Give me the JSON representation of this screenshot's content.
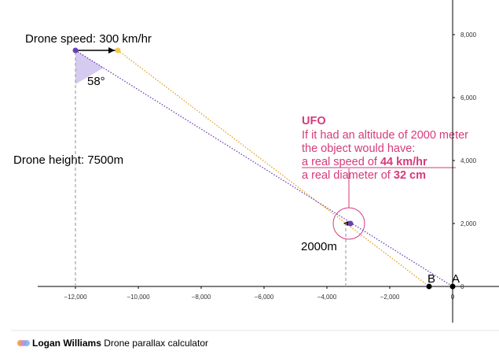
{
  "chart_data": {
    "type": "scatter",
    "xlim": [
      -13200,
      1475
    ],
    "ylim": [
      -1150,
      9100
    ],
    "xticks": [
      {
        "value": -12000,
        "label": "−12,000"
      },
      {
        "value": -10000,
        "label": "−10,000"
      },
      {
        "value": -8000,
        "label": "−8,000"
      },
      {
        "value": -6000,
        "label": "−6,000"
      },
      {
        "value": -4000,
        "label": "−4,000"
      },
      {
        "value": -2000,
        "label": "−2,000"
      },
      0
    ],
    "yticks": [
      0,
      {
        "value": 2000,
        "label": "2,000"
      },
      {
        "value": 4000,
        "label": "4,000"
      },
      {
        "value": 6000,
        "label": "6,000"
      },
      {
        "value": 8000,
        "label": "8,000"
      }
    ],
    "lines": [
      {
        "color": "#6a3fb5",
        "style": "dotted",
        "x": [
          -12000,
          0
        ],
        "y": [
          7500,
          0
        ]
      },
      {
        "color": "#e0a020",
        "style": "dotted",
        "x": [
          -10650,
          -750
        ],
        "y": [
          7500,
          0
        ]
      },
      {
        "color": "#aaaaaa",
        "style": "dashed",
        "x": [
          -12000,
          -12000
        ],
        "y": [
          0,
          7500
        ]
      },
      {
        "color": "#aaaaaa",
        "style": "dashed",
        "x": [
          -3400,
          -3400
        ],
        "y": [
          0,
          2000
        ]
      },
      {
        "color": "#000000",
        "style": "arrow",
        "x": [
          -12000,
          -10650
        ],
        "y": [
          7500,
          7500
        ]
      }
    ],
    "points": [
      {
        "color": "#6a3fb5",
        "x": -12000,
        "y": 7500
      },
      {
        "color": "#f2c94c",
        "x": -10650,
        "y": 7500
      },
      {
        "color": "#6a3fb5",
        "x": -3250,
        "y": 2000
      },
      {
        "color": "#000000",
        "x": 0,
        "y": 0
      },
      {
        "color": "#000000",
        "x": -750,
        "y": 0
      }
    ],
    "annotations": {
      "speed": "Drone speed: 300 km/hr",
      "angle": "58°",
      "height": "Drone height: 7500m",
      "altitude": "2000m",
      "point_a": "A",
      "point_b": "B",
      "ufo_title": "UFO",
      "ufo_line1": "If it had an altitude of 2000 meter",
      "ufo_line2": "the object would have:",
      "ufo_speed_text": "a real speed of ",
      "ufo_speed_value": "44 km/hr",
      "ufo_diameter_text": "a real diameter of ",
      "ufo_diameter_value": "32 cm"
    }
  },
  "footer": {
    "author": "Logan Williams",
    "title": "Drone parallax calculator"
  }
}
